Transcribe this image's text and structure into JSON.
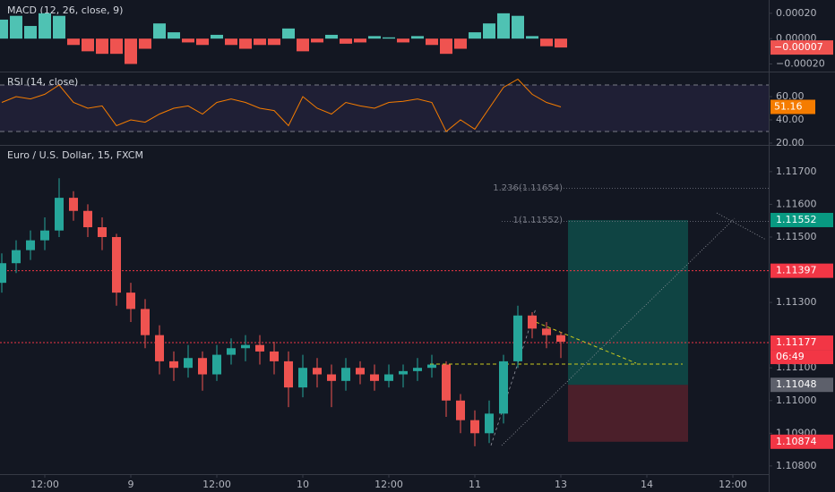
{
  "chart_data": [
    {
      "type": "bar",
      "title": "MACD (12, 26, close, 9)",
      "x": [
        6,
        8,
        10,
        12,
        14,
        16,
        18,
        20,
        22,
        24,
        26,
        28,
        30,
        32,
        34,
        36,
        38,
        40,
        42,
        44,
        46,
        48,
        50,
        52,
        54,
        56,
        58,
        60,
        62,
        64,
        66,
        68,
        70,
        72,
        74,
        76,
        78,
        80,
        82,
        84
      ],
      "values": [
        0.00015,
        0.00018,
        0.0001,
        0.0002,
        0.00018,
        -5e-05,
        -0.0001,
        -0.00012,
        -0.00012,
        -0.0002,
        -8e-05,
        0.00012,
        5e-05,
        -3e-05,
        -5e-05,
        3e-05,
        -5e-05,
        -8e-05,
        -5e-05,
        -5e-05,
        8e-05,
        -0.0001,
        -3e-05,
        3e-05,
        -4e-05,
        -3e-05,
        2e-05,
        1e-05,
        -3e-05,
        2e-05,
        -5e-05,
        -0.00012,
        -8e-05,
        5e-05,
        0.00012,
        0.0002,
        0.00018,
        2e-05,
        -6e-05,
        -7e-05
      ],
      "up_color": "#4fc2b3",
      "down_color": "#ef5350",
      "ylim": [
        -0.00026,
        0.000305
      ],
      "yticks": [
        {
          "value": 0.0002,
          "label": "0.00020"
        },
        {
          "value": 0,
          "label": "0.00000"
        },
        {
          "value": -0.0002,
          "label": "−0.00020"
        }
      ],
      "last": {
        "value": -7e-05,
        "label": "−0.00007"
      }
    },
    {
      "type": "line",
      "title": "RSI (14, close)",
      "x": [
        6,
        8,
        10,
        12,
        14,
        16,
        18,
        20,
        22,
        24,
        26,
        28,
        30,
        32,
        34,
        36,
        38,
        40,
        42,
        44,
        46,
        48,
        50,
        52,
        54,
        56,
        58,
        60,
        62,
        64,
        66,
        68,
        70,
        72,
        74,
        76,
        78,
        80,
        82,
        84
      ],
      "values": [
        55,
        60,
        58,
        62,
        70,
        55,
        50,
        52,
        35,
        40,
        38,
        45,
        50,
        52,
        45,
        55,
        58,
        55,
        50,
        48,
        35,
        60,
        50,
        45,
        55,
        52,
        50,
        55,
        56,
        58,
        55,
        30,
        40,
        32,
        50,
        68,
        75,
        62,
        55,
        51.16
      ],
      "color": "#f57c00",
      "band_color": "#7e57c2",
      "bands": [
        30,
        70
      ],
      "ylim": [
        20,
        80
      ],
      "yticks": [
        {
          "value": 60,
          "label": "60.00"
        },
        {
          "value": 40,
          "label": "40.00"
        },
        {
          "value": 20,
          "label": "20.00"
        }
      ],
      "last_value": 51.16
    },
    {
      "type": "candlestick",
      "title": "Euro / U.S. Dollar, 15, FXCM",
      "x": [
        6,
        8,
        10,
        12,
        14,
        16,
        18,
        20,
        22,
        24,
        26,
        28,
        30,
        32,
        34,
        36,
        38,
        40,
        42,
        44,
        46,
        48,
        50,
        52,
        54,
        56,
        58,
        60,
        62,
        64,
        66,
        68,
        70,
        72,
        74,
        76,
        78,
        80,
        82,
        84
      ],
      "open": [
        1.1136,
        1.1142,
        1.1146,
        1.1149,
        1.1152,
        1.1162,
        1.1158,
        1.1153,
        1.115,
        1.1133,
        1.1128,
        1.112,
        1.1112,
        1.111,
        1.1113,
        1.1108,
        1.1114,
        1.1116,
        1.1117,
        1.1115,
        1.1112,
        1.1104,
        1.111,
        1.1108,
        1.1106,
        1.111,
        1.1108,
        1.1106,
        1.1108,
        1.1109,
        1.111,
        1.1111,
        1.11,
        1.1094,
        1.109,
        1.1096,
        1.1112,
        1.1126,
        1.1122,
        1.112
      ],
      "high": [
        1.1145,
        1.1149,
        1.1152,
        1.1156,
        1.1168,
        1.1164,
        1.116,
        1.1156,
        1.1151,
        1.1136,
        1.1131,
        1.1123,
        1.1115,
        1.1117,
        1.1115,
        1.1117,
        1.1119,
        1.112,
        1.112,
        1.1118,
        1.1115,
        1.1114,
        1.1113,
        1.1111,
        1.1113,
        1.1112,
        1.1111,
        1.1111,
        1.1111,
        1.1113,
        1.1114,
        1.1112,
        1.1102,
        1.1097,
        1.11,
        1.1114,
        1.1129,
        1.1127,
        1.1124,
        1.1121
      ],
      "low": [
        1.1133,
        1.1139,
        1.1143,
        1.1146,
        1.115,
        1.1155,
        1.115,
        1.1146,
        1.1129,
        1.1124,
        1.1116,
        1.1108,
        1.1106,
        1.1107,
        1.1103,
        1.1106,
        1.1111,
        1.1112,
        1.1111,
        1.1108,
        1.1098,
        1.1101,
        1.1104,
        1.1098,
        1.1103,
        1.1105,
        1.1103,
        1.1104,
        1.1104,
        1.1106,
        1.1107,
        1.1095,
        1.109,
        1.1086,
        1.1087,
        1.1093,
        1.111,
        1.1119,
        1.1116,
        1.1113
      ],
      "close": [
        1.1142,
        1.1146,
        1.1149,
        1.1152,
        1.1162,
        1.1158,
        1.1153,
        1.115,
        1.1133,
        1.1128,
        1.112,
        1.1112,
        1.111,
        1.1113,
        1.1108,
        1.1114,
        1.1116,
        1.1117,
        1.1115,
        1.1112,
        1.1104,
        1.111,
        1.1108,
        1.1106,
        1.111,
        1.1108,
        1.1106,
        1.1108,
        1.1109,
        1.111,
        1.1111,
        1.11,
        1.1094,
        1.109,
        1.1096,
        1.1112,
        1.1126,
        1.1122,
        1.112,
        1.1118
      ],
      "up_color": "#26a69a",
      "down_color": "#ef5350",
      "xlim": [
        5.75,
        113
      ],
      "xticks": [
        {
          "value": 12,
          "label": "12:00"
        },
        {
          "value": 24,
          "label": "9"
        },
        {
          "value": 36,
          "label": "12:00"
        },
        {
          "value": 48,
          "label": "10"
        },
        {
          "value": 60,
          "label": "12:00"
        },
        {
          "value": 72,
          "label": "11"
        },
        {
          "value": 84,
          "label": "13"
        },
        {
          "value": 96,
          "label": "14"
        },
        {
          "value": 108,
          "label": "12:00"
        }
      ],
      "ylim": [
        1.10775,
        1.11779
      ],
      "yticks": [
        {
          "value": 1.117,
          "label": "1.11700"
        },
        {
          "value": 1.116,
          "label": "1.11600"
        },
        {
          "value": 1.115,
          "label": "1.11500"
        },
        {
          "value": 1.113,
          "label": "1.11300"
        },
        {
          "value": 1.111,
          "label": "1.11100"
        },
        {
          "value": 1.11,
          "label": "1.11000"
        },
        {
          "value": 1.109,
          "label": "1.10900"
        },
        {
          "value": 1.108,
          "label": "1.10800"
        }
      ],
      "levels": [
        {
          "value": 1.11552,
          "color": "#089981"
        },
        {
          "value": 1.11397,
          "color": "#f23645"
        },
        {
          "value": 1.11177,
          "color": "#f23645"
        },
        {
          "value": 1.11048,
          "color": "#5d606b"
        },
        {
          "value": 1.10874,
          "color": "#f23645"
        }
      ],
      "countdown": "06:49",
      "annotations": [
        "1.236(1.11654)",
        "1(1.11552)"
      ]
    }
  ]
}
